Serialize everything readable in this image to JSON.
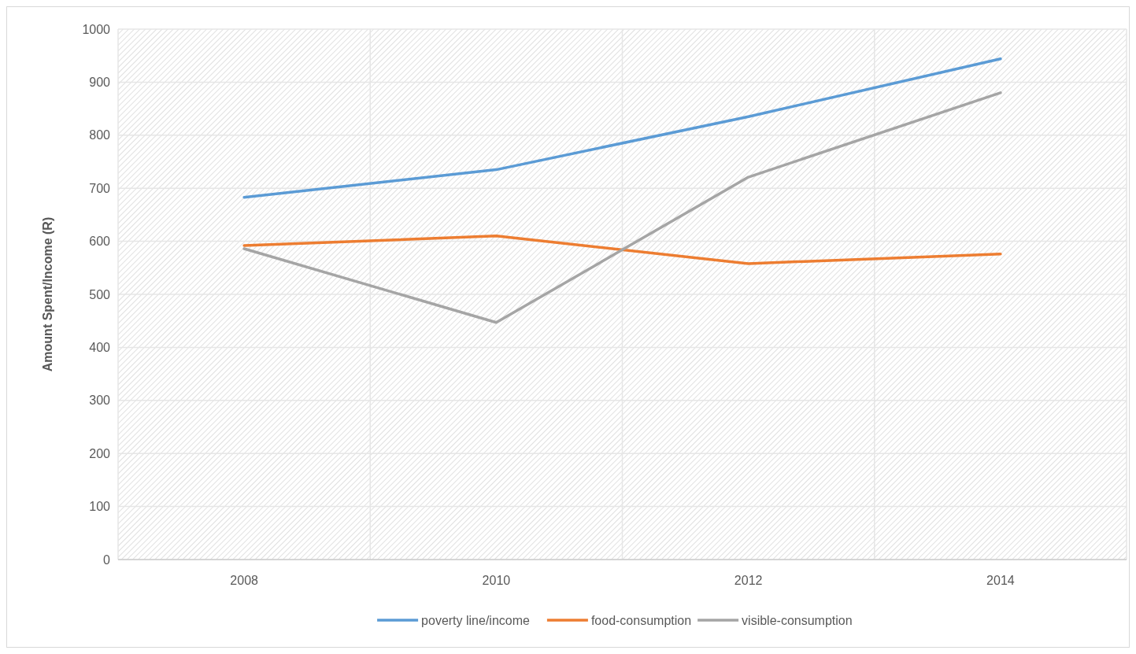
{
  "chart_data": {
    "type": "line",
    "ylabel": "Amount Spent/Income (R)",
    "categories": [
      "2008",
      "2010",
      "2012",
      "2014"
    ],
    "series": [
      {
        "name": "poverty line/income",
        "color": "#5b9bd5",
        "values": [
          683,
          735,
          835,
          944
        ]
      },
      {
        "name": "food-consumption",
        "color": "#ed7d31",
        "values": [
          592,
          610,
          558,
          576
        ]
      },
      {
        "name": "visible-consumption",
        "color": "#a5a5a5",
        "values": [
          586,
          447,
          721,
          880
        ]
      }
    ],
    "ylim": [
      0,
      1000
    ],
    "yticks": [
      0,
      100,
      200,
      300,
      400,
      500,
      600,
      700,
      800,
      900,
      1000
    ],
    "grid": true,
    "legend": "bottom",
    "marker": "none",
    "line_style": "solid"
  }
}
